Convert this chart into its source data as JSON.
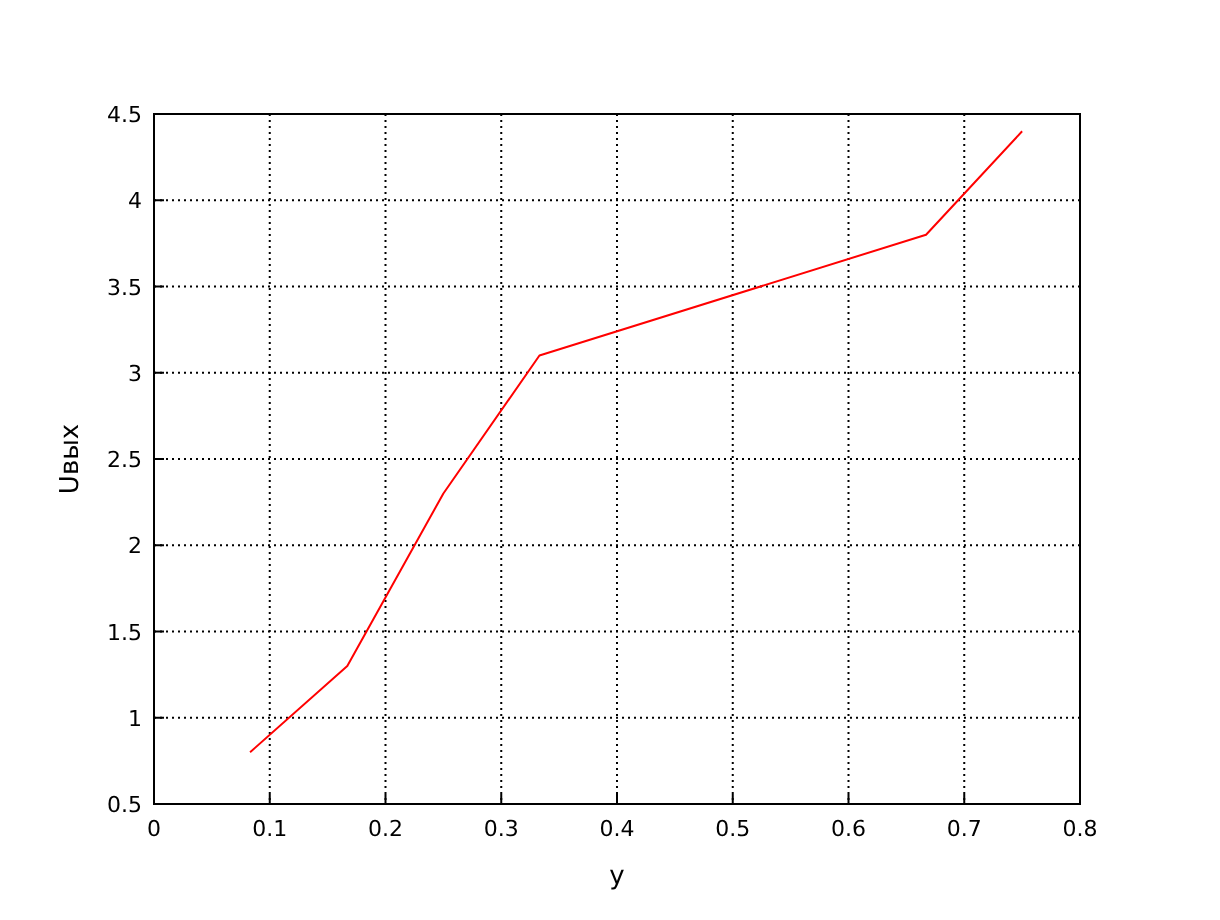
{
  "chart_data": {
    "type": "line",
    "xlabel": "y",
    "ylabel": "Uвых",
    "x": [
      0.083,
      0.167,
      0.25,
      0.333,
      0.667,
      0.75
    ],
    "series": [
      {
        "color": "#ff0000",
        "values": [
          0.8,
          1.3,
          2.3,
          3.1,
          3.8,
          4.4
        ]
      }
    ],
    "xlim": [
      0,
      0.8
    ],
    "xticks": [
      0,
      0.1,
      0.2,
      0.3,
      0.4,
      0.5,
      0.6,
      0.7,
      0.8
    ],
    "ylim": [
      0.5,
      4.5
    ],
    "yticks": [
      0.5,
      1,
      1.5,
      2,
      2.5,
      3,
      3.5,
      4,
      4.5
    ],
    "grid": true,
    "line_style": "solid",
    "marker": "none"
  }
}
